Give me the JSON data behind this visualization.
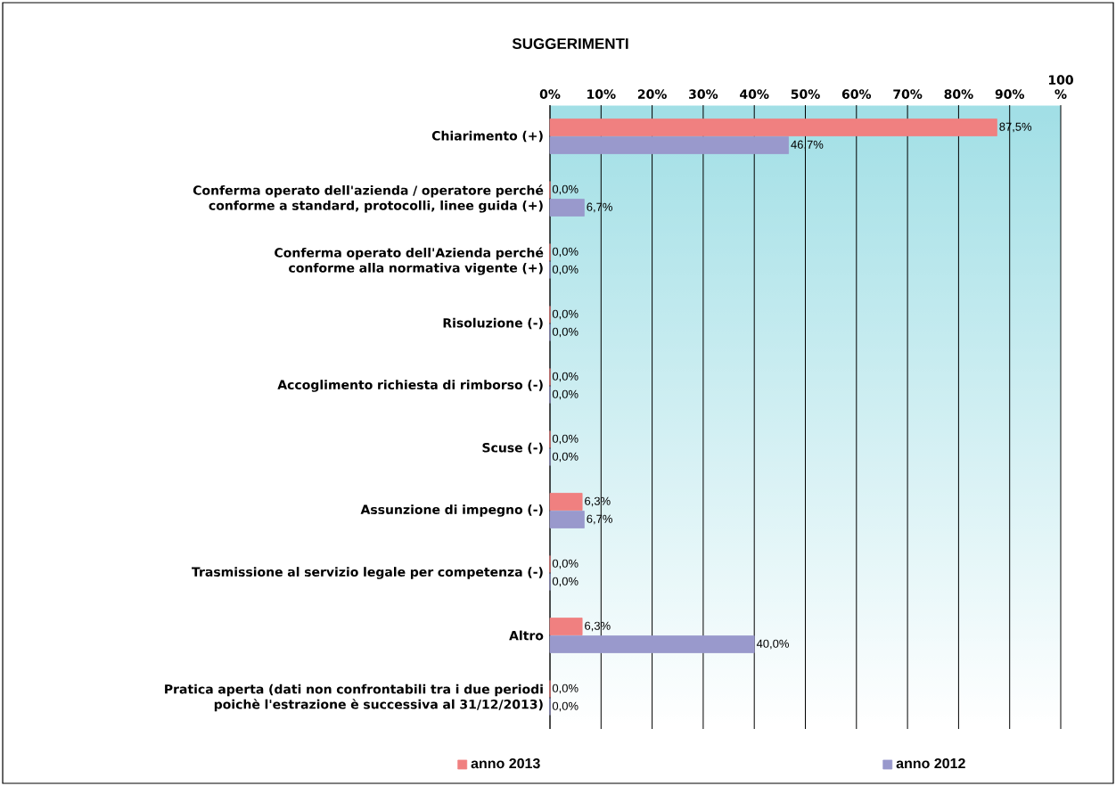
{
  "chart_data": {
    "type": "bar",
    "orientation": "horizontal",
    "title": "SUGGERIMENTI",
    "categories": [
      "Chiarimento (+)",
      "Conferma operato dell'azienda / operatore perché conforme a standard, protocolli, linee guida (+)",
      "Conferma operato dell'Azienda perché conforme alla normativa vigente (+)",
      "Risoluzione (-)",
      "Accoglimento richiesta di rimborso (-)",
      "Scuse (-)",
      "Assunzione di impegno (-)",
      "Trasmissione al servizio legale per competenza (-)",
      "Altro",
      "Pratica aperta (dati non confrontabili tra i due periodi poichè l'estrazione è successiva al 31/12/2013)"
    ],
    "series": [
      {
        "name": "anno 2013",
        "color": "#f08080",
        "values": [
          87.5,
          0,
          0,
          0,
          0,
          0,
          6.3,
          0,
          6.3,
          0
        ],
        "value_labels": [
          "87,5%",
          "0,0%",
          "0,0%",
          "0,0%",
          "0,0%",
          "0,0%",
          "6,3%",
          "0,0%",
          "6,3%",
          "0,0%"
        ]
      },
      {
        "name": "anno 2012",
        "color": "#9999cc",
        "values": [
          46.7,
          6.7,
          0,
          0,
          0,
          0,
          6.7,
          0,
          40.0,
          0
        ],
        "value_labels": [
          "46,7%",
          "6,7%",
          "0,0%",
          "0,0%",
          "0,0%",
          "0,0%",
          "6,7%",
          "0,0%",
          "40,0%",
          "0,0%"
        ]
      }
    ],
    "xlim": [
      0,
      100
    ],
    "xticks": [
      {
        "value": 0,
        "label": "0%"
      },
      {
        "value": 10,
        "label": "10%"
      },
      {
        "value": 20,
        "label": "20%"
      },
      {
        "value": 30,
        "label": "30%"
      },
      {
        "value": 40,
        "label": "40%"
      },
      {
        "value": 50,
        "label": "50%"
      },
      {
        "value": 60,
        "label": "60%"
      },
      {
        "value": 70,
        "label": "70%"
      },
      {
        "value": 80,
        "label": "80%"
      },
      {
        "value": 90,
        "label": "90%"
      },
      {
        "value": 100,
        "label": "100 %"
      }
    ],
    "grid": "x",
    "legend": "bottom"
  }
}
